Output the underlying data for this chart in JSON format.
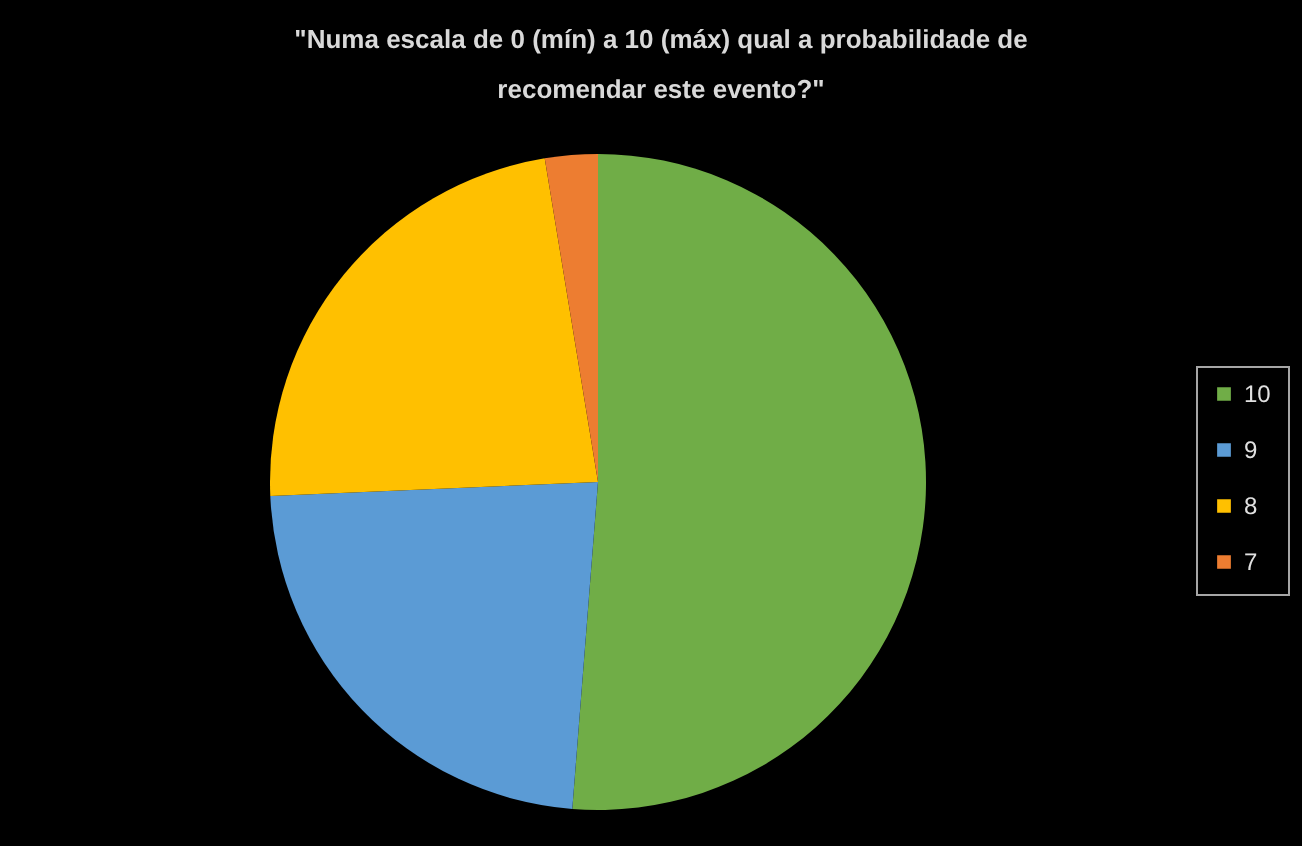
{
  "chart_data": {
    "type": "pie",
    "title": "\"Numa escala de  0 (mín) a 10 (máx) qual a probabilidade de\nrecomendar este evento?\"",
    "categories": [
      "10",
      "9",
      "8",
      "7"
    ],
    "values": [
      51.3,
      23.1,
      23.1,
      2.6
    ],
    "colors": [
      "#70ad47",
      "#5b9bd5",
      "#ffc000",
      "#ed7d31"
    ],
    "legend": "right"
  }
}
